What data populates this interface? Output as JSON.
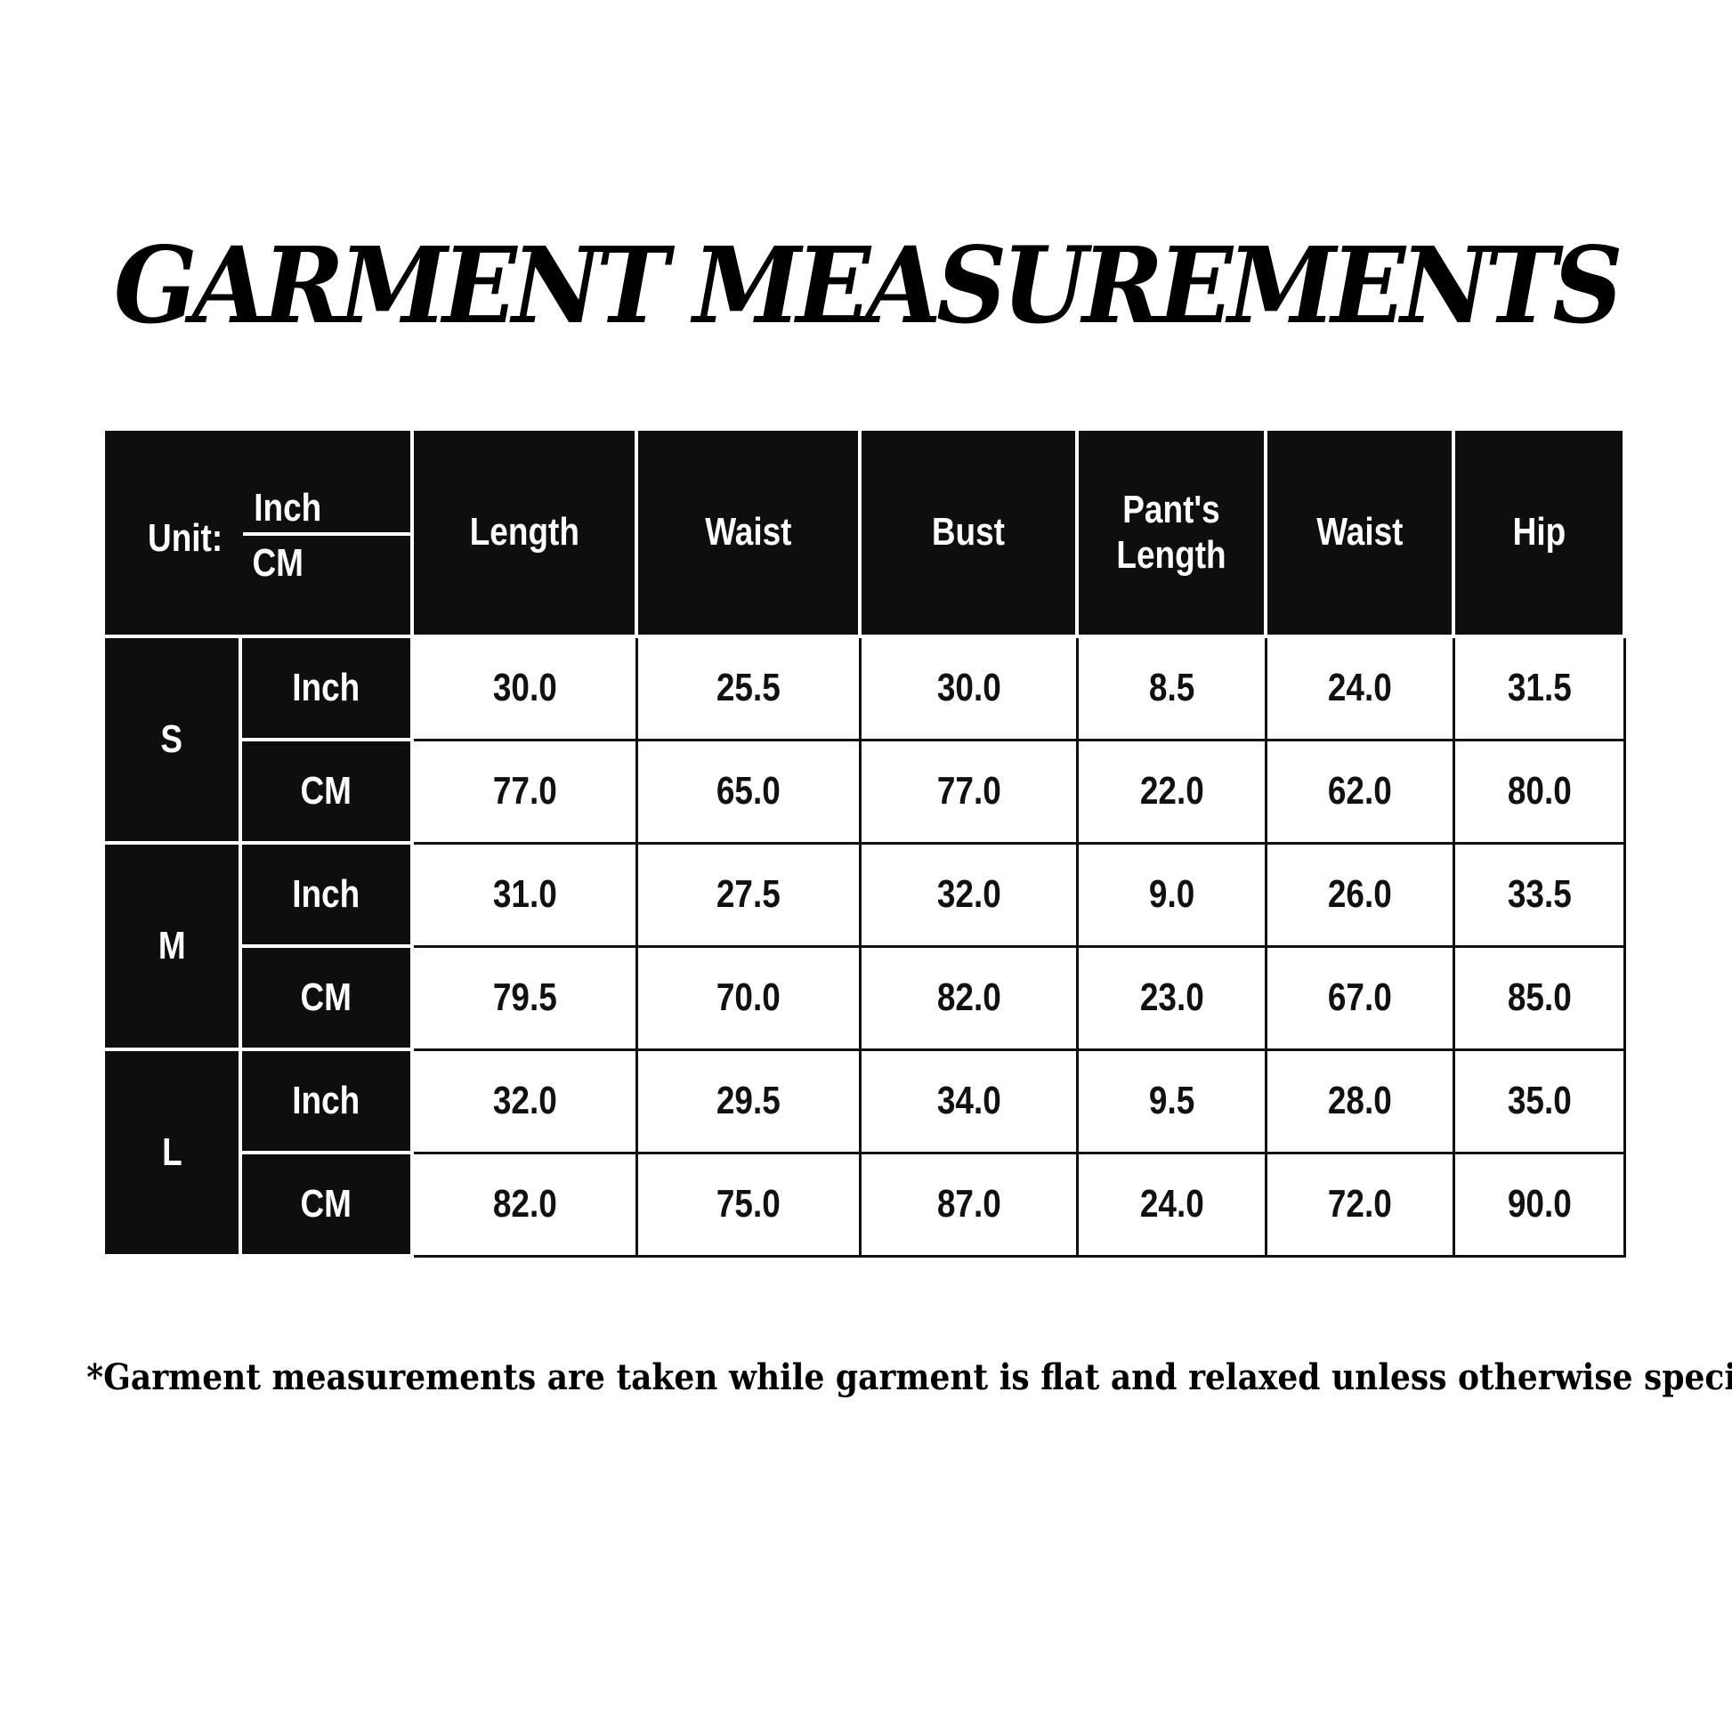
{
  "title": "GARMENT MEASUREMENTS",
  "table": {
    "unit_label": "Unit:",
    "unit_top": "Inch",
    "unit_bottom": "CM",
    "headers": [
      "Length",
      "Waist",
      "Bust",
      "Pant's Length",
      "Waist",
      "Hip"
    ],
    "sizes": [
      {
        "size": "S",
        "rows": [
          {
            "unit": "Inch",
            "values": [
              "30.0",
              "25.5",
              "30.0",
              "8.5",
              "24.0",
              "31.5"
            ]
          },
          {
            "unit": "CM",
            "values": [
              "77.0",
              "65.0",
              "77.0",
              "22.0",
              "62.0",
              "80.0"
            ]
          }
        ]
      },
      {
        "size": "M",
        "rows": [
          {
            "unit": "Inch",
            "values": [
              "31.0",
              "27.5",
              "32.0",
              "9.0",
              "26.0",
              "33.5"
            ]
          },
          {
            "unit": "CM",
            "values": [
              "79.5",
              "70.0",
              "82.0",
              "23.0",
              "67.0",
              "85.0"
            ]
          }
        ]
      },
      {
        "size": "L",
        "rows": [
          {
            "unit": "Inch",
            "values": [
              "32.0",
              "29.5",
              "34.0",
              "9.5",
              "28.0",
              "35.0"
            ]
          },
          {
            "unit": "CM",
            "values": [
              "82.0",
              "75.0",
              "87.0",
              "24.0",
              "72.0",
              "90.0"
            ]
          }
        ]
      }
    ]
  },
  "footnote": "*Garment measurements are taken while garment is flat and relaxed unless otherwise specified",
  "colors": {
    "header_bg": "#0e0e0e",
    "cell_bg": "#ffffff",
    "text": "#111111"
  }
}
